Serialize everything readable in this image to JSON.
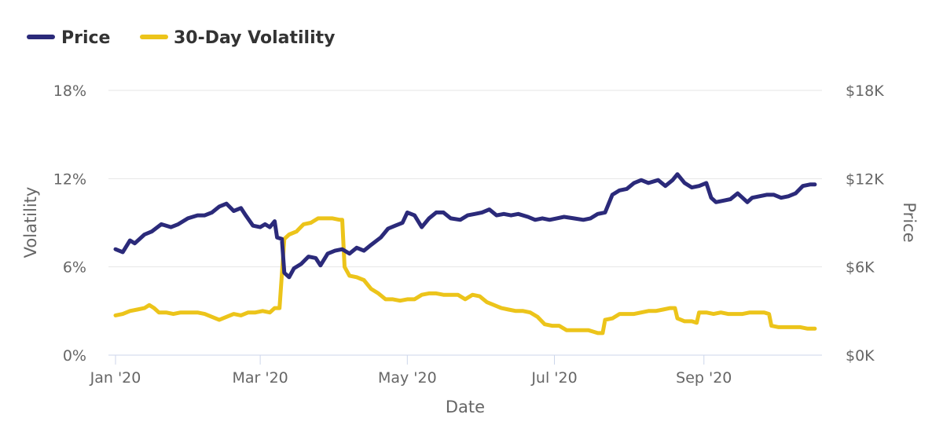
{
  "colors": {
    "price": "#2B2A7A",
    "volatility": "#ECC41A",
    "grid": "#E6E6E6",
    "axis": "#CCD6EB",
    "text": "#666666"
  },
  "legend": {
    "price_label": "Price",
    "volatility_label": "30-Day Volatility"
  },
  "chart_data": {
    "type": "line",
    "title": "",
    "xlabel": "Date",
    "ylabel_left": "Volatility",
    "ylabel_right": "Price",
    "x_unit": "days since Jan 1 2020",
    "xlim": [
      0,
      291
    ],
    "ylim_left": [
      0,
      18
    ],
    "ylim_right": [
      0,
      18000
    ],
    "x_ticks": [
      {
        "label": "Jan '20",
        "x": 0
      },
      {
        "label": "Mar '20",
        "x": 60
      },
      {
        "label": "May '20",
        "x": 121
      },
      {
        "label": "Jul '20",
        "x": 182
      },
      {
        "label": "Sep '20",
        "x": 244
      }
    ],
    "y_ticks_left": [
      {
        "label": "0%",
        "value": 0
      },
      {
        "label": "6%",
        "value": 6
      },
      {
        "label": "12%",
        "value": 12
      },
      {
        "label": "18%",
        "value": 18
      }
    ],
    "y_ticks_right": [
      {
        "label": "$0K",
        "value": 0
      },
      {
        "label": "$6K",
        "value": 6000
      },
      {
        "label": "$12K",
        "value": 12000
      },
      {
        "label": "$18K",
        "value": 18000
      }
    ],
    "series": [
      {
        "name": "Price",
        "axis": "right",
        "points": [
          [
            0,
            7200
          ],
          [
            3,
            7000
          ],
          [
            6,
            7800
          ],
          [
            8,
            7600
          ],
          [
            12,
            8200
          ],
          [
            15,
            8400
          ],
          [
            19,
            8900
          ],
          [
            23,
            8700
          ],
          [
            26,
            8900
          ],
          [
            30,
            9300
          ],
          [
            34,
            9500
          ],
          [
            37,
            9500
          ],
          [
            40,
            9700
          ],
          [
            43,
            10100
          ],
          [
            46,
            10300
          ],
          [
            49,
            9800
          ],
          [
            52,
            10000
          ],
          [
            54,
            9500
          ],
          [
            57,
            8800
          ],
          [
            60,
            8700
          ],
          [
            62,
            8900
          ],
          [
            64,
            8700
          ],
          [
            66,
            9100
          ],
          [
            67,
            8000
          ],
          [
            69,
            7900
          ],
          [
            70,
            5600
          ],
          [
            72,
            5300
          ],
          [
            74,
            5900
          ],
          [
            77,
            6200
          ],
          [
            80,
            6700
          ],
          [
            83,
            6600
          ],
          [
            85,
            6100
          ],
          [
            88,
            6900
          ],
          [
            91,
            7100
          ],
          [
            94,
            7200
          ],
          [
            97,
            6900
          ],
          [
            100,
            7300
          ],
          [
            103,
            7100
          ],
          [
            106,
            7500
          ],
          [
            110,
            8000
          ],
          [
            113,
            8600
          ],
          [
            116,
            8800
          ],
          [
            119,
            9000
          ],
          [
            121,
            9700
          ],
          [
            124,
            9500
          ],
          [
            127,
            8700
          ],
          [
            130,
            9300
          ],
          [
            133,
            9700
          ],
          [
            136,
            9700
          ],
          [
            139,
            9300
          ],
          [
            143,
            9200
          ],
          [
            146,
            9500
          ],
          [
            149,
            9600
          ],
          [
            152,
            9700
          ],
          [
            155,
            9900
          ],
          [
            158,
            9500
          ],
          [
            161,
            9600
          ],
          [
            164,
            9500
          ],
          [
            167,
            9600
          ],
          [
            171,
            9400
          ],
          [
            174,
            9200
          ],
          [
            177,
            9300
          ],
          [
            180,
            9200
          ],
          [
            183,
            9300
          ],
          [
            186,
            9400
          ],
          [
            190,
            9300
          ],
          [
            194,
            9200
          ],
          [
            197,
            9300
          ],
          [
            200,
            9600
          ],
          [
            203,
            9700
          ],
          [
            206,
            10900
          ],
          [
            209,
            11200
          ],
          [
            212,
            11300
          ],
          [
            215,
            11700
          ],
          [
            218,
            11900
          ],
          [
            221,
            11700
          ],
          [
            225,
            11900
          ],
          [
            228,
            11500
          ],
          [
            231,
            11900
          ],
          [
            233,
            12300
          ],
          [
            236,
            11700
          ],
          [
            239,
            11400
          ],
          [
            242,
            11500
          ],
          [
            245,
            11700
          ],
          [
            247,
            10700
          ],
          [
            249,
            10400
          ],
          [
            252,
            10500
          ],
          [
            255,
            10600
          ],
          [
            258,
            11000
          ],
          [
            260,
            10700
          ],
          [
            262,
            10400
          ],
          [
            264,
            10700
          ],
          [
            267,
            10800
          ],
          [
            270,
            10900
          ],
          [
            273,
            10900
          ],
          [
            276,
            10700
          ],
          [
            279,
            10800
          ],
          [
            282,
            11000
          ],
          [
            285,
            11500
          ],
          [
            288,
            11600
          ],
          [
            290,
            11600
          ]
        ]
      },
      {
        "name": "30-Day Volatility",
        "axis": "left",
        "points": [
          [
            0,
            2.7
          ],
          [
            3,
            2.8
          ],
          [
            6,
            3.0
          ],
          [
            9,
            3.1
          ],
          [
            12,
            3.2
          ],
          [
            14,
            3.4
          ],
          [
            16,
            3.2
          ],
          [
            18,
            2.9
          ],
          [
            21,
            2.9
          ],
          [
            24,
            2.8
          ],
          [
            27,
            2.9
          ],
          [
            30,
            2.9
          ],
          [
            34,
            2.9
          ],
          [
            37,
            2.8
          ],
          [
            40,
            2.6
          ],
          [
            43,
            2.4
          ],
          [
            46,
            2.6
          ],
          [
            49,
            2.8
          ],
          [
            52,
            2.7
          ],
          [
            55,
            2.9
          ],
          [
            58,
            2.9
          ],
          [
            61,
            3.0
          ],
          [
            64,
            2.9
          ],
          [
            66,
            3.2
          ],
          [
            68,
            3.2
          ],
          [
            69,
            5.5
          ],
          [
            70,
            7.9
          ],
          [
            72,
            8.2
          ],
          [
            75,
            8.4
          ],
          [
            78,
            8.9
          ],
          [
            81,
            9.0
          ],
          [
            84,
            9.3
          ],
          [
            87,
            9.3
          ],
          [
            90,
            9.3
          ],
          [
            93,
            9.2
          ],
          [
            94,
            9.2
          ],
          [
            95,
            6.0
          ],
          [
            97,
            5.4
          ],
          [
            100,
            5.3
          ],
          [
            103,
            5.1
          ],
          [
            106,
            4.5
          ],
          [
            109,
            4.2
          ],
          [
            112,
            3.8
          ],
          [
            115,
            3.8
          ],
          [
            118,
            3.7
          ],
          [
            121,
            3.8
          ],
          [
            124,
            3.8
          ],
          [
            127,
            4.1
          ],
          [
            130,
            4.2
          ],
          [
            133,
            4.2
          ],
          [
            136,
            4.1
          ],
          [
            139,
            4.1
          ],
          [
            142,
            4.1
          ],
          [
            145,
            3.8
          ],
          [
            148,
            4.1
          ],
          [
            151,
            4.0
          ],
          [
            154,
            3.6
          ],
          [
            157,
            3.4
          ],
          [
            160,
            3.2
          ],
          [
            163,
            3.1
          ],
          [
            166,
            3.0
          ],
          [
            169,
            3.0
          ],
          [
            172,
            2.9
          ],
          [
            175,
            2.6
          ],
          [
            178,
            2.1
          ],
          [
            181,
            2.0
          ],
          [
            184,
            2.0
          ],
          [
            187,
            1.7
          ],
          [
            190,
            1.7
          ],
          [
            193,
            1.7
          ],
          [
            196,
            1.7
          ],
          [
            198,
            1.6
          ],
          [
            200,
            1.5
          ],
          [
            202,
            1.5
          ],
          [
            203,
            2.4
          ],
          [
            206,
            2.5
          ],
          [
            209,
            2.8
          ],
          [
            212,
            2.8
          ],
          [
            215,
            2.8
          ],
          [
            218,
            2.9
          ],
          [
            221,
            3.0
          ],
          [
            224,
            3.0
          ],
          [
            227,
            3.1
          ],
          [
            230,
            3.2
          ],
          [
            232,
            3.2
          ],
          [
            233,
            2.5
          ],
          [
            236,
            2.3
          ],
          [
            239,
            2.3
          ],
          [
            241,
            2.2
          ],
          [
            242,
            2.9
          ],
          [
            245,
            2.9
          ],
          [
            248,
            2.8
          ],
          [
            251,
            2.9
          ],
          [
            254,
            2.8
          ],
          [
            257,
            2.8
          ],
          [
            260,
            2.8
          ],
          [
            263,
            2.9
          ],
          [
            266,
            2.9
          ],
          [
            269,
            2.9
          ],
          [
            271,
            2.8
          ],
          [
            272,
            2.0
          ],
          [
            275,
            1.9
          ],
          [
            278,
            1.9
          ],
          [
            281,
            1.9
          ],
          [
            284,
            1.9
          ],
          [
            287,
            1.8
          ],
          [
            290,
            1.8
          ]
        ]
      }
    ]
  }
}
